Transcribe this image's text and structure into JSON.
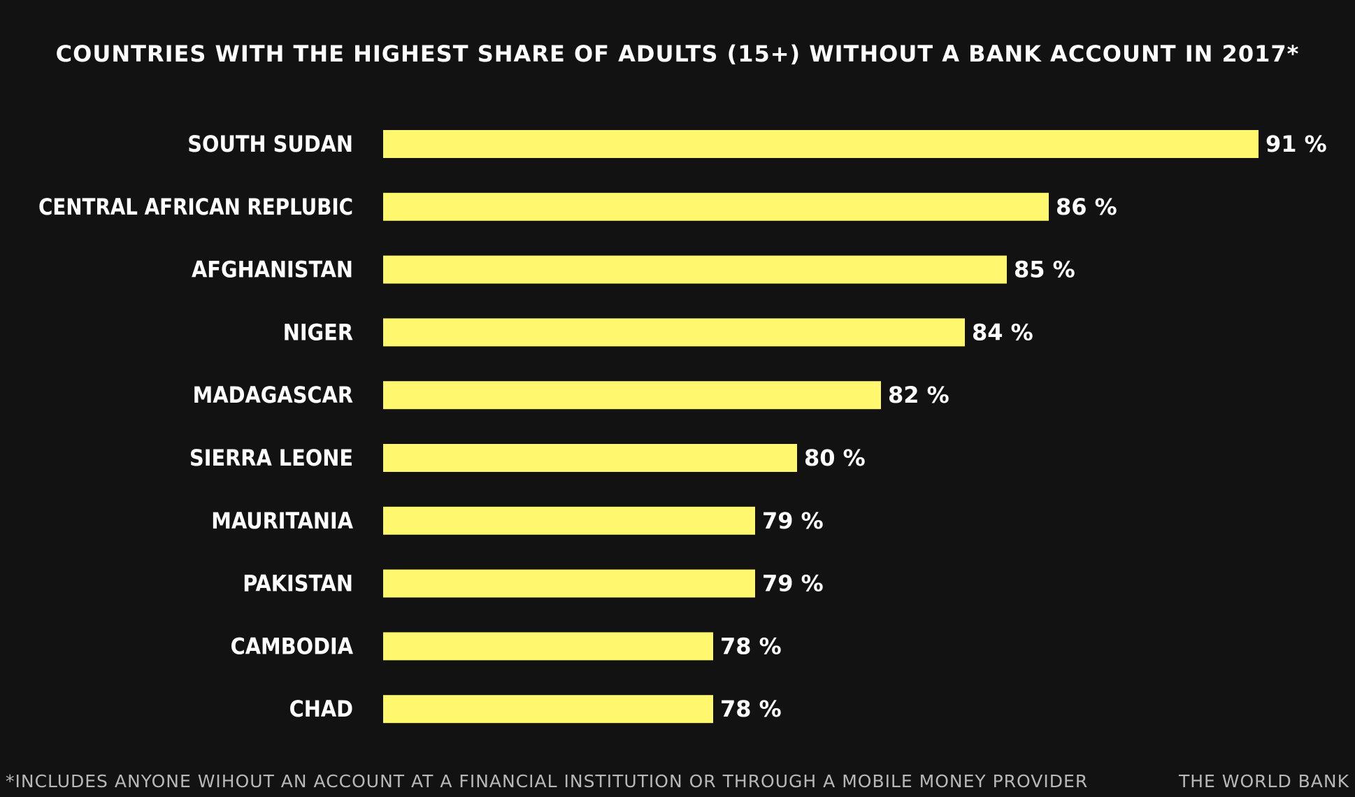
{
  "colors": {
    "background": "#121212",
    "bar": "#fff86e",
    "text": "#ffffff",
    "muted_text": "#b8b8b8"
  },
  "footnote": "*INCLUDES ANYONE WIHOUT AN ACCOUNT AT A FINANCIAL INSTITUTION OR THROUGH A MOBILE MONEY PROVIDER",
  "source": "THE WORLD BANK",
  "chart_data": {
    "type": "bar",
    "orientation": "horizontal",
    "title": "COUNTRIES WITH THE HIGHEST SHARE OF ADULTS (15+) WITHOUT A BANK ACCOUNT IN 2017*",
    "xlabel": "",
    "ylabel": "",
    "value_suffix": " %",
    "grid": false,
    "categories": [
      "SOUTH SUDAN",
      "CENTRAL AFRICAN REPLUBIC",
      "AFGHANISTAN",
      "NIGER",
      "MADAGASCAR",
      "SIERRA LEONE",
      "MAURITANIA",
      "PAKISTAN",
      "CAMBODIA",
      "CHAD"
    ],
    "values": [
      91,
      86,
      85,
      84,
      82,
      80,
      79,
      79,
      78,
      78
    ]
  }
}
